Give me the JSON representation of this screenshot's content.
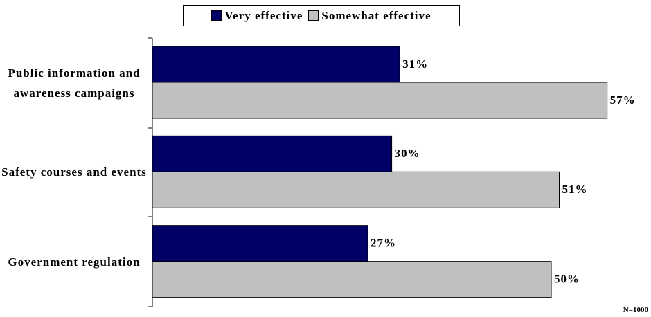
{
  "chart_data": {
    "type": "bar",
    "orientation": "horizontal",
    "categories": [
      "Public information and awareness campaigns",
      "Safety courses and events",
      "Government regulation"
    ],
    "series": [
      {
        "name": "Very effective",
        "color": "#000066",
        "values": [
          31,
          30,
          27
        ],
        "value_labels": [
          "31%",
          "30%",
          "27%"
        ]
      },
      {
        "name": "Somewhat effective",
        "color": "#c0c0c0",
        "values": [
          57,
          51,
          50
        ],
        "value_labels": [
          "57%",
          "51%",
          "50%"
        ]
      }
    ],
    "xlim": [
      0,
      62.5
    ],
    "legend": "top",
    "annotation": "N=1000"
  }
}
